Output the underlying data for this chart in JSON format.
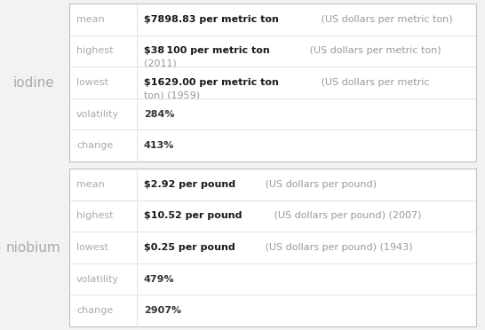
{
  "elements": [
    {
      "name": "iodine",
      "rows": [
        {
          "label": "mean",
          "bold": "$7898.83 per metric ton",
          "normal": " (US dollars per metric ton)"
        },
        {
          "label": "highest",
          "bold": "$38 100 per metric ton",
          "normal": " (US dollars per metric ton)\n(2011)"
        },
        {
          "label": "lowest",
          "bold": "$1629.00 per metric ton",
          "normal": " (US dollars per metric\nton) (1959)"
        },
        {
          "label": "volatility",
          "bold": "",
          "normal": "284%"
        },
        {
          "label": "change",
          "bold": "",
          "normal": "413%"
        }
      ]
    },
    {
      "name": "niobium",
      "rows": [
        {
          "label": "mean",
          "bold": "$2.92 per pound",
          "normal": " (US dollars per pound)"
        },
        {
          "label": "highest",
          "bold": "$10.52 per pound",
          "normal": " (US dollars per pound) (2007)"
        },
        {
          "label": "lowest",
          "bold": "$0.25 per pound",
          "normal": " (US dollars per pound) (1943)"
        },
        {
          "label": "volatility",
          "bold": "",
          "normal": "479%"
        },
        {
          "label": "change",
          "bold": "",
          "normal": "2907%"
        }
      ]
    }
  ],
  "fig_bg": "#f2f2f2",
  "table_bg": "#ffffff",
  "border_color": "#c0c0c0",
  "divider_color": "#d8d8d8",
  "elem_color": "#aaaaaa",
  "label_color": "#aaaaaa",
  "bold_color": "#1a1a1a",
  "normal_color": "#999999",
  "plain_color": "#333333",
  "elem_fontsize": 11,
  "label_fontsize": 8,
  "value_fontsize": 8,
  "fig_w": 5.46,
  "fig_h": 3.72,
  "dpi": 100
}
